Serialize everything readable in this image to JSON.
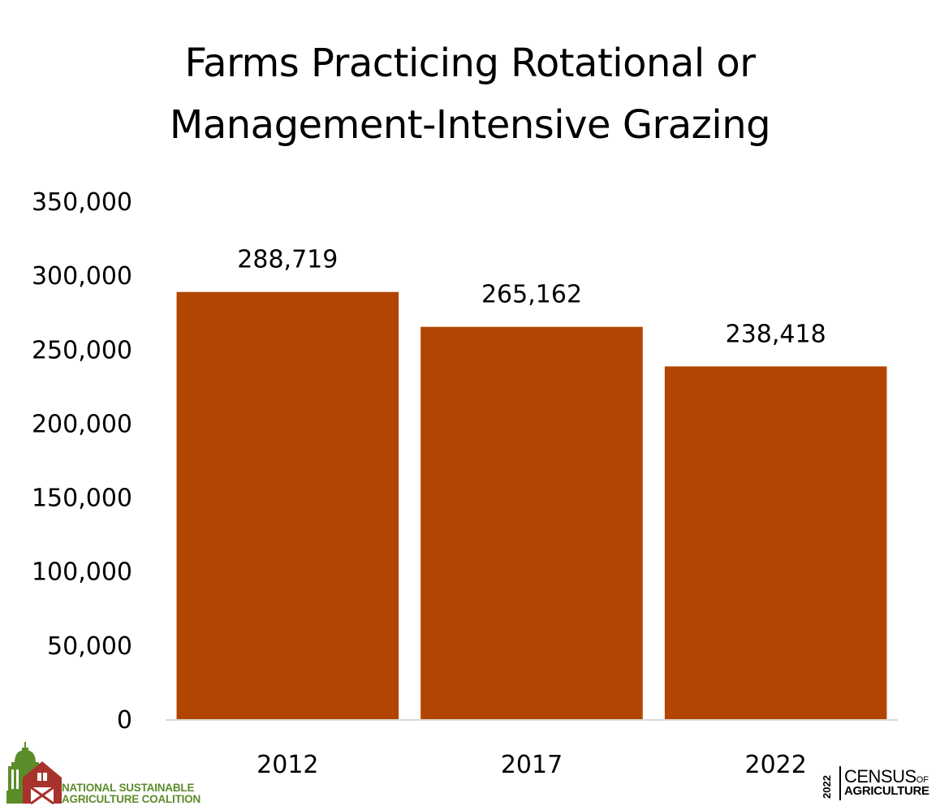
{
  "chart_data": {
    "type": "bar",
    "title_lines": [
      "Farms Practicing Rotational or",
      "Management-Intensive Grazing"
    ],
    "categories": [
      "2012",
      "2017",
      "2022"
    ],
    "values": [
      288719,
      265162,
      238418
    ],
    "value_labels": [
      "288,719",
      "265,162",
      "238,418"
    ],
    "ylim": [
      0,
      350000
    ],
    "yticks": [
      0,
      50000,
      100000,
      150000,
      200000,
      250000,
      300000,
      350000
    ],
    "ytick_labels": [
      "0",
      "50,000",
      "100,000",
      "150,000",
      "200,000",
      "250,000",
      "300,000",
      "350,000"
    ],
    "grid": false,
    "bar_color": "#b34502",
    "axis_color": "#d9d9d9"
  },
  "logos": {
    "nsac_lines": "NATIONAL SUSTAINABLE\nAGRICULTURE COALITION",
    "census_year": "2022",
    "census_main": "CENSUS",
    "census_of": "OF",
    "census_sub": "AGRICULTURE",
    "nsac_green": "#5b8c2a",
    "nsac_red": "#a8322c"
  }
}
